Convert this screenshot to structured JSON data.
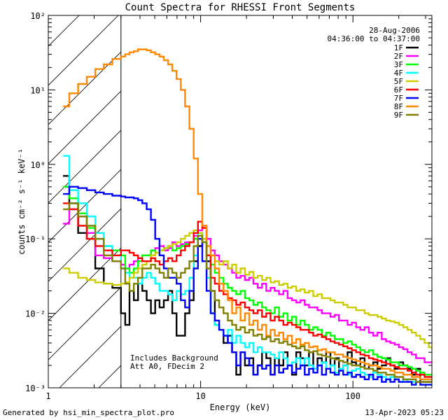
{
  "chart_data": {
    "type": "line",
    "title": "Count Spectra for RHESSI Front Segments",
    "xlabel": "Energy (keV)",
    "ylabel": "counts cm⁻² s⁻¹ keV⁻¹",
    "xscale": "log",
    "yscale": "log",
    "xlim": [
      1,
      330
    ],
    "ylim": [
      0.001,
      100
    ],
    "x_tick_labels": [
      "1",
      "10",
      "100"
    ],
    "y_tick_labels": [
      "10⁻³",
      "10⁻²",
      "10⁻¹",
      "10⁰",
      "10¹",
      "10²"
    ],
    "date": "28-Aug-2006",
    "time_range": "04:36:00 to 04:37:00",
    "annotations": [
      "Includes Background",
      "Att A0, FDecim 2"
    ],
    "shaded_region": {
      "x_from": 1.25,
      "x_to": 3.0,
      "note": "diagonal hatching below attenuator threshold"
    },
    "energy_bins_keV": [
      1.25,
      1.33,
      1.42,
      1.52,
      1.62,
      1.73,
      1.85,
      1.97,
      2.1,
      2.24,
      2.39,
      2.55,
      2.72,
      2.9,
      3.1,
      3.3,
      3.53,
      3.76,
      4.01,
      4.28,
      4.57,
      4.87,
      5.2,
      5.55,
      5.92,
      6.31,
      6.73,
      7.18,
      7.66,
      8.17,
      8.72,
      9.3,
      9.92,
      10.6,
      11.3,
      12.0,
      12.8,
      13.7,
      14.6,
      15.6,
      16.6,
      17.7,
      18.9,
      20.2,
      21.5,
      22.9,
      24.5,
      26.1,
      27.9,
      29.7,
      31.7,
      33.8,
      36.1,
      38.5,
      41.1,
      43.8,
      46.7,
      49.8,
      53.2,
      56.7,
      60.5,
      64.6,
      68.9,
      73.5,
      78.4,
      83.6,
      89.2,
      95.2,
      101.6,
      108.4,
      115.6,
      123.3,
      131.6,
      140.4,
      149.8,
      159.8,
      170.4,
      181.8,
      194.0,
      206.9,
      220.8,
      235.5,
      251.3,
      268.0,
      286.0,
      305.1,
      325.5
    ],
    "series": [
      {
        "name": "1F",
        "color": "#000000",
        "values": [
          0.7,
          0.7,
          0.3,
          0.3,
          0.12,
          0.12,
          0.1,
          0.1,
          0.04,
          0.04,
          0.025,
          0.025,
          0.022,
          0.022,
          0.01,
          0.007,
          0.02,
          0.015,
          0.025,
          0.02,
          0.015,
          0.01,
          0.015,
          0.012,
          0.015,
          0.02,
          0.01,
          0.005,
          0.005,
          0.01,
          0.015,
          0.05,
          0.08,
          0.1,
          0.05,
          0.02,
          0.007,
          0.006,
          0.004,
          0.005,
          0.003,
          0.0015,
          0.003,
          0.002,
          0.0025,
          0.0015,
          0.002,
          0.003,
          0.0025,
          0.0015,
          0.0025,
          0.002,
          0.003,
          0.002,
          0.0015,
          0.003,
          0.0025,
          0.002,
          0.003,
          0.0018,
          0.0025,
          0.0022,
          0.003,
          0.002,
          0.0025,
          0.0018,
          0.002,
          0.003,
          0.0022,
          0.002,
          0.0025,
          0.0018,
          0.002,
          0.0022,
          0.0018,
          0.002,
          0.0025,
          0.002,
          0.0018,
          0.0022,
          0.002,
          0.0018,
          0.0015,
          0.0018,
          0.0012,
          0.0012,
          0.0012
        ]
      },
      {
        "name": "2F",
        "color": "#ff00ff",
        "values": [
          0.16,
          0.16,
          0.25,
          0.25,
          0.2,
          0.2,
          0.12,
          0.12,
          0.06,
          0.06,
          0.055,
          0.055,
          0.05,
          0.05,
          0.045,
          0.04,
          0.045,
          0.05,
          0.055,
          0.06,
          0.06,
          0.07,
          0.075,
          0.08,
          0.07,
          0.075,
          0.09,
          0.08,
          0.085,
          0.09,
          0.09,
          0.11,
          0.13,
          0.15,
          0.1,
          0.07,
          0.06,
          0.05,
          0.045,
          0.04,
          0.035,
          0.03,
          0.032,
          0.028,
          0.03,
          0.025,
          0.022,
          0.025,
          0.02,
          0.022,
          0.02,
          0.018,
          0.02,
          0.016,
          0.015,
          0.014,
          0.015,
          0.013,
          0.012,
          0.012,
          0.011,
          0.01,
          0.01,
          0.009,
          0.0095,
          0.008,
          0.008,
          0.007,
          0.0075,
          0.0065,
          0.006,
          0.0065,
          0.0055,
          0.005,
          0.0055,
          0.0045,
          0.0042,
          0.004,
          0.0038,
          0.0035,
          0.0033,
          0.003,
          0.0028,
          0.0025,
          0.0025,
          0.0022,
          0.0022
        ]
      },
      {
        "name": "3F",
        "color": "#00ff00",
        "values": [
          0.5,
          0.5,
          0.35,
          0.35,
          0.22,
          0.22,
          0.14,
          0.14,
          0.1,
          0.1,
          0.08,
          0.08,
          0.07,
          0.07,
          0.06,
          0.04,
          0.035,
          0.04,
          0.05,
          0.06,
          0.06,
          0.07,
          0.065,
          0.07,
          0.075,
          0.08,
          0.07,
          0.075,
          0.08,
          0.085,
          0.09,
          0.1,
          0.12,
          0.1,
          0.06,
          0.045,
          0.035,
          0.03,
          0.025,
          0.022,
          0.02,
          0.018,
          0.02,
          0.016,
          0.015,
          0.013,
          0.014,
          0.012,
          0.011,
          0.01,
          0.012,
          0.009,
          0.01,
          0.008,
          0.009,
          0.007,
          0.008,
          0.007,
          0.006,
          0.0065,
          0.006,
          0.005,
          0.0055,
          0.005,
          0.0045,
          0.0045,
          0.004,
          0.0042,
          0.0038,
          0.0035,
          0.0032,
          0.003,
          0.0032,
          0.0028,
          0.0026,
          0.0025,
          0.0024,
          0.0022,
          0.0022,
          0.002,
          0.002,
          0.0019,
          0.0018,
          0.0017,
          0.0016,
          0.0015,
          0.0015
        ]
      },
      {
        "name": "4F",
        "color": "#00ffff",
        "values": [
          1.3,
          1.3,
          0.45,
          0.45,
          0.3,
          0.3,
          0.2,
          0.2,
          0.12,
          0.12,
          0.08,
          0.08,
          0.06,
          0.06,
          0.04,
          0.035,
          0.03,
          0.03,
          0.025,
          0.03,
          0.035,
          0.03,
          0.025,
          0.02,
          0.02,
          0.018,
          0.015,
          0.02,
          0.018,
          0.02,
          0.03,
          0.06,
          0.12,
          0.09,
          0.03,
          0.01,
          0.007,
          0.006,
          0.005,
          0.006,
          0.004,
          0.005,
          0.004,
          0.0035,
          0.004,
          0.003,
          0.0035,
          0.003,
          0.003,
          0.0028,
          0.0025,
          0.003,
          0.0025,
          0.002,
          0.0022,
          0.0025,
          0.002,
          0.0025,
          0.002,
          0.0018,
          0.002,
          0.0022,
          0.0018,
          0.002,
          0.0016,
          0.0018,
          0.002,
          0.0015,
          0.0017,
          0.0018,
          0.0016,
          0.0015,
          0.0014,
          0.0016,
          0.0015,
          0.0014,
          0.0013,
          0.0014,
          0.0013,
          0.0012,
          0.0013,
          0.0012,
          0.0012,
          0.0012,
          0.0011,
          0.0011,
          0.0011
        ]
      },
      {
        "name": "5F",
        "color": "#cccc00",
        "values": [
          0.04,
          0.04,
          0.035,
          0.035,
          0.03,
          0.03,
          0.028,
          0.028,
          0.026,
          0.026,
          0.025,
          0.025,
          0.024,
          0.024,
          0.025,
          0.026,
          0.03,
          0.035,
          0.04,
          0.045,
          0.05,
          0.06,
          0.065,
          0.07,
          0.075,
          0.08,
          0.085,
          0.09,
          0.1,
          0.11,
          0.12,
          0.13,
          0.12,
          0.1,
          0.08,
          0.06,
          0.05,
          0.045,
          0.05,
          0.04,
          0.045,
          0.035,
          0.04,
          0.033,
          0.036,
          0.03,
          0.032,
          0.028,
          0.03,
          0.026,
          0.027,
          0.024,
          0.025,
          0.022,
          0.023,
          0.02,
          0.021,
          0.019,
          0.02,
          0.017,
          0.018,
          0.016,
          0.016,
          0.015,
          0.014,
          0.014,
          0.013,
          0.012,
          0.012,
          0.011,
          0.011,
          0.01,
          0.0095,
          0.0095,
          0.009,
          0.0085,
          0.008,
          0.0078,
          0.0075,
          0.007,
          0.0065,
          0.006,
          0.0055,
          0.005,
          0.0045,
          0.004,
          0.0035
        ]
      },
      {
        "name": "6F",
        "color": "#ff0000",
        "values": [
          0.3,
          0.3,
          0.25,
          0.25,
          0.15,
          0.15,
          0.1,
          0.1,
          0.08,
          0.08,
          0.07,
          0.07,
          0.06,
          0.06,
          0.07,
          0.07,
          0.065,
          0.06,
          0.055,
          0.05,
          0.05,
          0.055,
          0.05,
          0.045,
          0.05,
          0.055,
          0.05,
          0.06,
          0.07,
          0.08,
          0.09,
          0.12,
          0.17,
          0.14,
          0.06,
          0.03,
          0.025,
          0.02,
          0.018,
          0.016,
          0.015,
          0.013,
          0.014,
          0.012,
          0.011,
          0.01,
          0.011,
          0.009,
          0.01,
          0.008,
          0.009,
          0.008,
          0.007,
          0.0075,
          0.007,
          0.0065,
          0.006,
          0.006,
          0.0055,
          0.005,
          0.0052,
          0.0048,
          0.0045,
          0.0042,
          0.004,
          0.0038,
          0.0036,
          0.0034,
          0.0032,
          0.003,
          0.0028,
          0.0027,
          0.0025,
          0.0024,
          0.0023,
          0.0022,
          0.0021,
          0.002,
          0.0019,
          0.0018,
          0.0018,
          0.0017,
          0.0016,
          0.0015,
          0.0015,
          0.0014,
          0.0014
        ]
      },
      {
        "name": "7F",
        "color": "#0000ff",
        "values": [
          0.4,
          0.4,
          0.5,
          0.5,
          0.48,
          0.48,
          0.45,
          0.45,
          0.42,
          0.42,
          0.4,
          0.4,
          0.38,
          0.38,
          0.37,
          0.36,
          0.36,
          0.35,
          0.33,
          0.3,
          0.25,
          0.18,
          0.1,
          0.06,
          0.04,
          0.03,
          0.03,
          0.025,
          0.015,
          0.012,
          0.02,
          0.04,
          0.1,
          0.05,
          0.02,
          0.01,
          0.008,
          0.006,
          0.005,
          0.004,
          0.003,
          0.002,
          0.003,
          0.0025,
          0.002,
          0.0015,
          0.002,
          0.0018,
          0.002,
          0.0015,
          0.002,
          0.0016,
          0.0018,
          0.002,
          0.0016,
          0.0018,
          0.002,
          0.0015,
          0.0018,
          0.0016,
          0.002,
          0.0015,
          0.0018,
          0.0016,
          0.0015,
          0.0017,
          0.0015,
          0.0016,
          0.0014,
          0.0015,
          0.0014,
          0.0013,
          0.0015,
          0.0013,
          0.0014,
          0.0012,
          0.0013,
          0.0012,
          0.0013,
          0.0012,
          0.0012,
          0.0012,
          0.0011,
          0.0012,
          0.0011,
          0.0011,
          0.0011
        ]
      },
      {
        "name": "8F",
        "color": "#ff8800",
        "values": [
          6,
          6,
          9,
          9,
          12,
          12,
          15,
          15,
          19,
          19,
          22,
          22,
          26,
          26,
          28,
          30,
          32,
          33,
          35,
          35,
          34,
          32,
          30,
          28,
          25,
          22,
          18,
          14,
          10,
          6,
          3,
          1.2,
          0.4,
          0.15,
          0.08,
          0.06,
          0.04,
          0.025,
          0.02,
          0.015,
          0.01,
          0.012,
          0.008,
          0.01,
          0.007,
          0.008,
          0.006,
          0.007,
          0.005,
          0.006,
          0.005,
          0.0055,
          0.0045,
          0.005,
          0.004,
          0.0045,
          0.0038,
          0.004,
          0.0035,
          0.0036,
          0.0032,
          0.0033,
          0.003,
          0.003,
          0.0028,
          0.0028,
          0.0026,
          0.0025,
          0.0024,
          0.0023,
          0.0022,
          0.0021,
          0.002,
          0.002,
          0.0019,
          0.0018,
          0.0018,
          0.0017,
          0.0016,
          0.0016,
          0.0015,
          0.0015,
          0.0014,
          0.0014,
          0.0013,
          0.0013,
          0.0013
        ]
      },
      {
        "name": "9F",
        "color": "#808000",
        "values": [
          0.25,
          0.25,
          0.3,
          0.3,
          0.2,
          0.2,
          0.15,
          0.15,
          0.1,
          0.1,
          0.06,
          0.06,
          0.05,
          0.05,
          0.04,
          0.025,
          0.02,
          0.025,
          0.03,
          0.04,
          0.04,
          0.045,
          0.04,
          0.035,
          0.03,
          0.04,
          0.035,
          0.03,
          0.035,
          0.04,
          0.05,
          0.08,
          0.11,
          0.09,
          0.04,
          0.02,
          0.015,
          0.012,
          0.01,
          0.008,
          0.007,
          0.006,
          0.0065,
          0.0055,
          0.006,
          0.005,
          0.0052,
          0.0045,
          0.0048,
          0.0042,
          0.0045,
          0.004,
          0.0042,
          0.0038,
          0.0036,
          0.0034,
          0.0036,
          0.0032,
          0.003,
          0.0031,
          0.0028,
          0.0027,
          0.0026,
          0.0025,
          0.0024,
          0.0023,
          0.0022,
          0.0021,
          0.002,
          0.002,
          0.0019,
          0.0018,
          0.0018,
          0.0017,
          0.0016,
          0.0016,
          0.0015,
          0.0015,
          0.0014,
          0.0014,
          0.0013,
          0.0013,
          0.0013,
          0.0012,
          0.0012,
          0.0012,
          0.0012
        ]
      }
    ]
  },
  "footer": {
    "left": "Generated by hsi_min_spectra_plot.pro",
    "right": "13-Apr-2023 05:23"
  }
}
